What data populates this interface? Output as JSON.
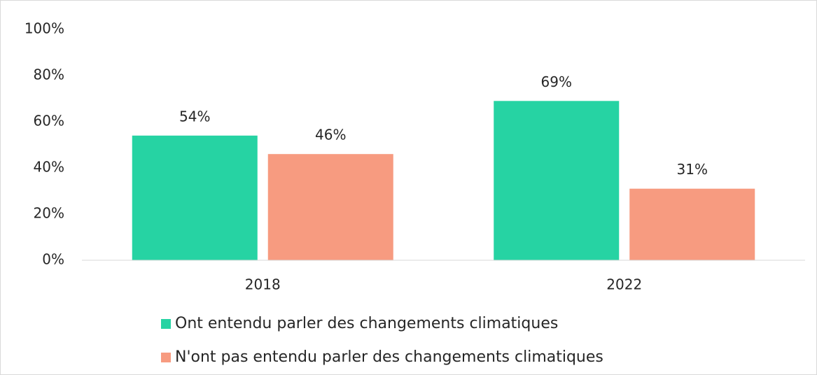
{
  "chart_data": {
    "type": "bar",
    "categories": [
      "2018",
      "2022"
    ],
    "series": [
      {
        "name": "Ont entendu parler des changements climatiques",
        "color": "#26d3a3",
        "values": [
          54,
          69
        ],
        "value_labels": [
          "54%",
          "69%"
        ]
      },
      {
        "name": "N'ont pas entendu parler des changements climatiques",
        "color": "#f79b80",
        "values": [
          46,
          31
        ],
        "value_labels": [
          "46%",
          "31%"
        ]
      }
    ],
    "ylim": [
      0,
      100
    ],
    "yticks": [
      {
        "value": 0,
        "label": "0%"
      },
      {
        "value": 20,
        "label": "20%"
      },
      {
        "value": 40,
        "label": "40%"
      },
      {
        "value": 60,
        "label": "60%"
      },
      {
        "value": 80,
        "label": "80%"
      },
      {
        "value": 100,
        "label": "100%"
      }
    ],
    "grid": false,
    "legend": "bottom"
  }
}
